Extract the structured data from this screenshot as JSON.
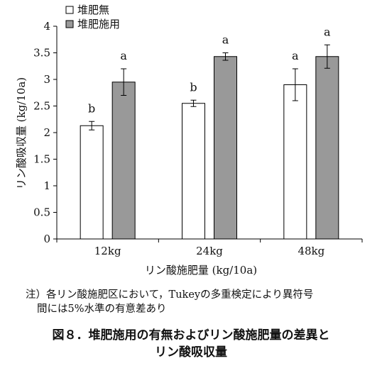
{
  "chart_data": {
    "type": "bar",
    "categories": [
      "12kg",
      "24kg",
      "48kg"
    ],
    "series": [
      {
        "name": "堆肥無",
        "values": [
          2.13,
          2.55,
          2.9
        ],
        "errors": [
          0.08,
          0.06,
          0.3
        ],
        "letters": [
          "b",
          "b",
          "a"
        ],
        "color": "#ffffff"
      },
      {
        "name": "堆肥施用",
        "values": [
          2.95,
          3.43,
          3.43
        ],
        "errors": [
          0.25,
          0.07,
          0.22
        ],
        "letters": [
          "a",
          "a",
          "a"
        ],
        "color": "#999999"
      }
    ],
    "xlabel": "リン酸施肥量 (kg/10a)",
    "ylabel": "リン酸吸収量 (kg/10a)",
    "ylim": [
      0,
      4
    ],
    "yticks": [
      "0",
      "0.5",
      "1",
      "1.5",
      "2",
      "2.5",
      "3",
      "3.5",
      "4"
    ],
    "grid": false,
    "legend_position": "top-left"
  },
  "note": {
    "line1": "注）各リン酸施肥区において，Tukeyの多重検定により異符号",
    "line2": "間には5%水準の有意差あり"
  },
  "caption": {
    "line1": "図８．堆肥施用の有無およびリン酸施肥量の差異と",
    "line2": "リン酸吸収量"
  }
}
